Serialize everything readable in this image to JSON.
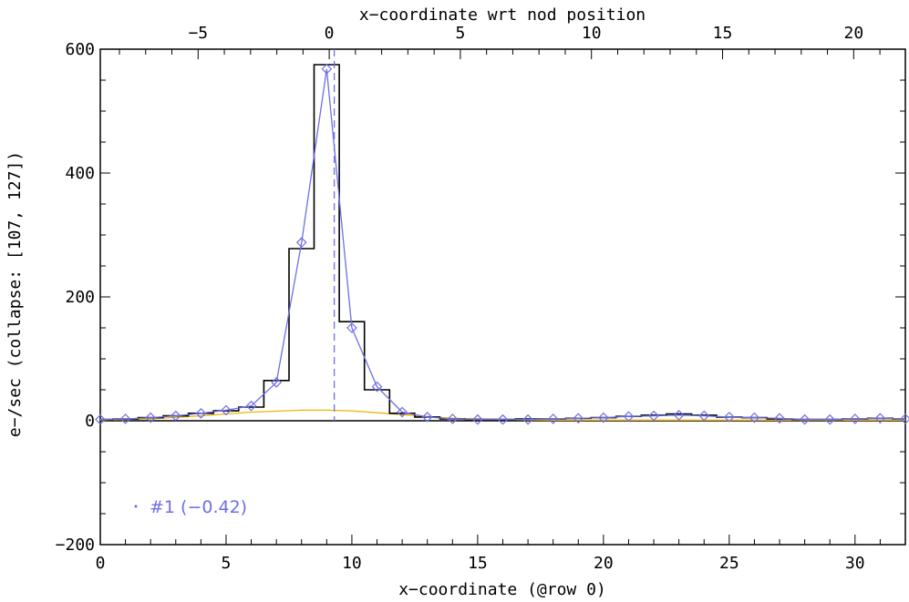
{
  "chart_data": {
    "type": "line",
    "xlabel": "x−coordinate (@row 0)",
    "ylabel": "e−/sec (collapse: [107, 127])",
    "x2label": "x−coordinate wrt nod position",
    "xlim": [
      0,
      32
    ],
    "ylim": [
      -200,
      600
    ],
    "x2lim": [
      -8.73,
      21.97
    ],
    "xticks": [
      0,
      5,
      10,
      15,
      20,
      25,
      30
    ],
    "yticks": [
      -200,
      0,
      200,
      400,
      600
    ],
    "x2ticks": [
      -5,
      0,
      5,
      10,
      15,
      20
    ],
    "xtick_labels": [
      "0",
      "5",
      "10",
      "15",
      "20",
      "25",
      "30"
    ],
    "ytick_labels": [
      "−200",
      "0",
      "200",
      "400",
      "600"
    ],
    "x2tick_labels": [
      "−5",
      "0",
      "5",
      "10",
      "15",
      "20"
    ],
    "annotation": "#1 (−0.42)",
    "nod_position_x": 9.3,
    "series": [
      {
        "style": "step-histogram",
        "color": "#000000",
        "x": [
          0,
          1,
          2,
          3,
          4,
          5,
          6,
          7,
          8,
          9,
          10,
          11,
          12,
          13,
          14,
          15,
          16,
          17,
          18,
          19,
          20,
          21,
          22,
          23,
          24,
          25,
          26,
          27,
          28,
          29,
          30,
          31,
          32
        ],
        "values": [
          2,
          3,
          5,
          8,
          12,
          16,
          22,
          65,
          278,
          575,
          160,
          50,
          12,
          6,
          3,
          2,
          2,
          3,
          3,
          4,
          5,
          7,
          9,
          11,
          9,
          6,
          5,
          3,
          2,
          2,
          3,
          4,
          3
        ]
      },
      {
        "style": "line-diamond",
        "color": "#6e6ee6",
        "x": [
          0,
          1,
          2,
          3,
          4,
          5,
          6,
          7,
          8,
          9,
          10,
          11,
          12,
          13,
          14,
          15,
          16,
          17,
          18,
          19,
          20,
          21,
          22,
          23,
          24,
          25,
          26,
          27,
          28,
          29,
          30,
          31,
          32
        ],
        "values": [
          2,
          3,
          5,
          8,
          12,
          17,
          24,
          62,
          288,
          568,
          150,
          55,
          14,
          6,
          3,
          2,
          2,
          2,
          3,
          4,
          5,
          7,
          8,
          9,
          8,
          6,
          5,
          4,
          2,
          2,
          3,
          4,
          3
        ]
      },
      {
        "style": "smooth-line",
        "color": "#f0b400",
        "x": [
          0,
          2,
          4,
          6,
          8,
          9,
          10,
          12,
          14,
          16,
          18,
          20,
          22,
          24,
          26,
          28,
          30,
          32
        ],
        "values": [
          1,
          3,
          8,
          14,
          17,
          17,
          16,
          10,
          4,
          2,
          1,
          1,
          1,
          1,
          1,
          1,
          1,
          1
        ]
      }
    ]
  }
}
